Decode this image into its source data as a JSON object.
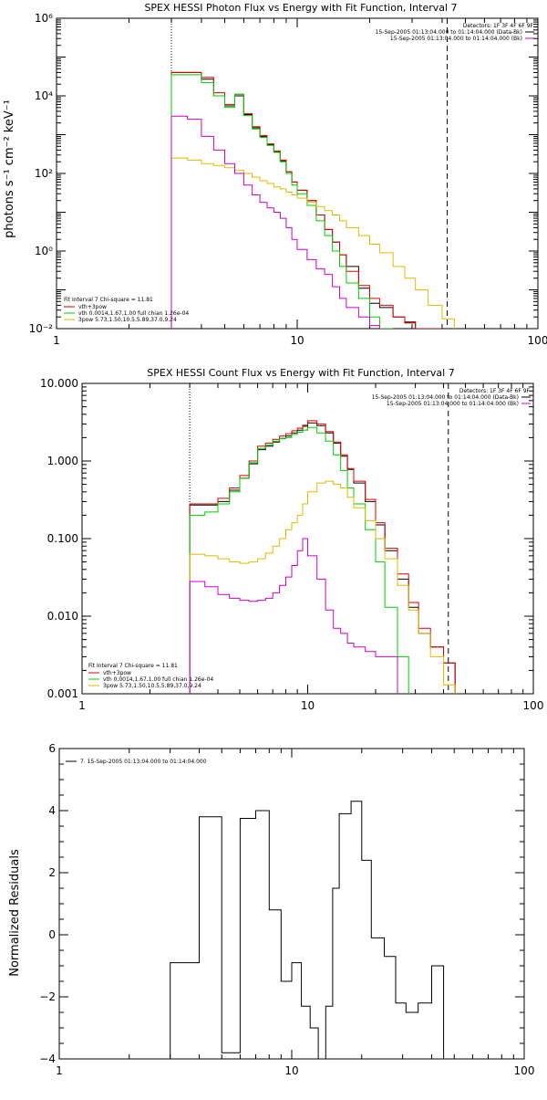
{
  "chart_data": [
    {
      "type": "line",
      "step": true,
      "title": "SPEX HESSI Photon Flux vs Energy with Fit Function, Interval 7",
      "xlabel": "",
      "ylabel": "photons s⁻¹ cm⁻² keV⁻¹",
      "xscale": "log",
      "yscale": "log",
      "xlim": [
        1,
        100
      ],
      "ylim": [
        0.01,
        1000000
      ],
      "xticks": [
        "1",
        "10",
        "100"
      ],
      "yticks": [
        {
          "value": 0.01,
          "label": "10⁻²"
        },
        {
          "value": 1,
          "label": "10⁰"
        },
        {
          "value": 100,
          "label": "10²"
        },
        {
          "value": 10000,
          "label": "10⁴"
        },
        {
          "value": 1000000,
          "label": "10⁶"
        }
      ],
      "vlines": [
        {
          "x": 3,
          "style": "dotted"
        },
        {
          "x": 42,
          "style": "dashed"
        }
      ],
      "header_right": [
        "Detectors: 1F 3F 4F 6F 9F",
        "15-Sep-2005 01:13:04.000 to 01:14:04.000 (Data-Bk)",
        "15-Sep-2005 01:13:04.000 to 01:14:04.000 (Bk)"
      ],
      "legend_lines": [
        {
          "text": "Fit Interval  7   Chi-square = 11.81",
          "color": "#000000"
        },
        {
          "text": "vth+3pow",
          "color": "#dd0000"
        },
        {
          "text": "vth 0.0014,1.67,1.00  full chian 1.26e-04",
          "color": "#00cc00"
        },
        {
          "text": "3pow 5.73,1.50,10.5,5.89,37.0,9.24",
          "color": "#ddbb00"
        }
      ],
      "edges": [
        3,
        3.5,
        4,
        4.5,
        5,
        5.5,
        6,
        6.5,
        7,
        7.5,
        8,
        8.5,
        9,
        9.5,
        10,
        11,
        12,
        13,
        14,
        15,
        16,
        18,
        20,
        22,
        25,
        28,
        31,
        35,
        40,
        45
      ],
      "series": [
        {
          "name": "",
          "color": "#000000",
          "values": [
            40000,
            40000,
            27000,
            10000,
            5500,
            10000,
            3300,
            1500,
            900,
            550,
            360,
            210,
            110,
            60,
            37,
            20,
            8.5,
            3.6,
            1.7,
            0.8,
            0.4,
            0.11,
            0.045,
            0.035,
            0.02,
            0.014,
            0.01,
            0.01,
            null
          ]
        },
        {
          "name": "",
          "color": "#dd0000",
          "values": [
            40000,
            40000,
            30000,
            12000,
            6000,
            11000,
            3500,
            1600,
            950,
            580,
            380,
            220,
            110,
            60,
            37,
            20,
            8.5,
            3.6,
            1.7,
            0.8,
            0.3,
            0.13,
            0.06,
            0.04,
            0.02,
            0.015,
            0.01,
            0.01,
            null
          ]
        },
        {
          "name": "",
          "color": "#00cc00",
          "values": [
            35000,
            35000,
            22000,
            10000,
            5000,
            11000,
            3100,
            1400,
            850,
            530,
            350,
            200,
            100,
            50,
            30,
            15,
            6,
            2.5,
            1,
            0.4,
            0.15,
            0.06,
            0.02,
            0.01,
            null,
            null,
            null,
            null,
            null
          ]
        },
        {
          "name": "",
          "color": "#ddbb00",
          "values": [
            250,
            220,
            180,
            160,
            140,
            120,
            100,
            80,
            65,
            55,
            45,
            40,
            33,
            28,
            23,
            18,
            14,
            11,
            8.5,
            6,
            4,
            2.5,
            1.5,
            0.9,
            0.4,
            0.2,
            0.1,
            0.04,
            0.018
          ]
        },
        {
          "name": "",
          "color": "#cc00cc",
          "values": [
            3000,
            2500,
            900,
            400,
            180,
            100,
            50,
            28,
            18,
            13,
            10,
            7,
            4,
            2,
            1.1,
            0.6,
            0.35,
            0.25,
            0.12,
            0.06,
            0.035,
            0.02,
            0.012,
            null,
            null,
            null,
            null,
            null,
            null
          ]
        }
      ]
    },
    {
      "type": "line",
      "step": true,
      "title": "SPEX HESSI Count Flux vs Energy with Fit Function, Interval 7",
      "xlabel": "",
      "ylabel": "",
      "xscale": "log",
      "yscale": "log",
      "xlim": [
        1,
        100
      ],
      "ylim": [
        0.001,
        10
      ],
      "xticks": [
        "1",
        "10",
        "100"
      ],
      "yticks": [
        {
          "value": 0.001,
          "label": "0.001"
        },
        {
          "value": 0.01,
          "label": "0.010"
        },
        {
          "value": 0.1,
          "label": "0.100"
        },
        {
          "value": 1,
          "label": "1.000"
        },
        {
          "value": 10,
          "label": "10.000"
        }
      ],
      "vlines": [
        {
          "x": 3,
          "style": "dotted"
        },
        {
          "x": 42,
          "style": "dashed"
        }
      ],
      "header_right": [
        "Detectors: 1F 3F 4F 6F 9F",
        "15-Sep-2005 01:13:04.000 to 01:14:04.000 (Data-Bk)",
        "15-Sep-2005 01:13:04.000 to 01:14:04.000 (Bk)"
      ],
      "legend_lines": [
        {
          "text": "Fit Interval  7   Chi-square = 11.81",
          "color": "#000000"
        },
        {
          "text": "vth+3pow",
          "color": "#dd0000"
        },
        {
          "text": "vth 0.0014,1.67,1.00  full chian 1.26e-04",
          "color": "#00cc00"
        },
        {
          "text": "3pow 5.73,1.50,10.5,5.89,37.0,9.24",
          "color": "#ddbb00"
        }
      ],
      "edges": [
        3,
        3.5,
        4,
        4.5,
        5,
        5.5,
        6,
        6.5,
        7,
        7.5,
        8,
        8.5,
        9,
        9.5,
        10,
        11,
        12,
        13,
        14,
        15,
        16,
        18,
        20,
        22,
        25,
        28,
        31,
        35,
        40,
        45
      ],
      "series": [
        {
          "name": "",
          "color": "#000000",
          "values": [
            0.27,
            0.27,
            0.3,
            0.42,
            0.6,
            0.92,
            1.4,
            1.55,
            1.75,
            1.95,
            2.1,
            2.3,
            2.5,
            2.8,
            3.1,
            2.85,
            2.3,
            1.7,
            1.15,
            0.78,
            0.52,
            0.3,
            0.15,
            0.07,
            0.03,
            0.013,
            0.006,
            0.004,
            0.0025
          ]
        },
        {
          "name": "",
          "color": "#dd0000",
          "values": [
            0.28,
            0.28,
            0.33,
            0.45,
            0.65,
            1.0,
            1.55,
            1.7,
            1.9,
            2.1,
            2.25,
            2.45,
            2.65,
            2.9,
            3.3,
            3.0,
            2.4,
            1.75,
            1.2,
            0.8,
            0.55,
            0.32,
            0.16,
            0.075,
            0.035,
            0.015,
            0.007,
            0.004,
            0.0025
          ]
        },
        {
          "name": "",
          "color": "#00cc00",
          "values": [
            0.2,
            0.22,
            0.28,
            0.4,
            0.6,
            0.95,
            1.45,
            1.6,
            1.8,
            1.95,
            2.0,
            2.2,
            2.35,
            2.5,
            2.7,
            2.3,
            1.8,
            1.2,
            0.75,
            0.45,
            0.28,
            0.13,
            0.05,
            0.013,
            0.003,
            null,
            null,
            null,
            null
          ]
        },
        {
          "name": "",
          "color": "#ddbb00",
          "values": [
            0.063,
            0.06,
            0.055,
            0.05,
            0.048,
            0.05,
            0.055,
            0.065,
            0.08,
            0.1,
            0.13,
            0.16,
            0.2,
            0.28,
            0.4,
            0.52,
            0.55,
            0.5,
            0.45,
            0.34,
            0.25,
            0.17,
            0.1,
            0.055,
            0.025,
            0.012,
            0.006,
            0.003,
            0.0013
          ]
        },
        {
          "name": "",
          "color": "#cc00cc",
          "values": [
            0.028,
            0.024,
            0.019,
            0.017,
            0.016,
            0.0155,
            0.016,
            0.017,
            0.02,
            0.025,
            0.032,
            0.045,
            0.07,
            0.1,
            0.06,
            0.03,
            0.012,
            0.007,
            0.006,
            0.0045,
            0.004,
            0.0035,
            0.003,
            0.003,
            null,
            null,
            null,
            null,
            null
          ]
        }
      ]
    },
    {
      "type": "line",
      "step": true,
      "title": "",
      "xlabel": "",
      "ylabel": "Normalized Residuals",
      "xscale": "log",
      "yscale": "linear",
      "xlim": [
        1,
        100
      ],
      "ylim": [
        -4,
        6
      ],
      "xticks": [
        "1",
        "10",
        "100"
      ],
      "yticks": [
        {
          "value": -4,
          "label": "−4"
        },
        {
          "value": -2,
          "label": "−2"
        },
        {
          "value": 0,
          "label": "0"
        },
        {
          "value": 2,
          "label": "2"
        },
        {
          "value": 4,
          "label": "4"
        },
        {
          "value": 6,
          "label": "6"
        }
      ],
      "legend_lines": [
        {
          "text": "7. 15-Sep-2005 01:13:04.000 to 01:14:04.000",
          "color": "#000000"
        }
      ],
      "edges": [
        3,
        4,
        5,
        6,
        7,
        8,
        9,
        10,
        11,
        12,
        13,
        14,
        15,
        16,
        18,
        20,
        22,
        25,
        28,
        31,
        35,
        40,
        45
      ],
      "series": [
        {
          "name": "",
          "color": "#000000",
          "values": [
            -0.9,
            3.8,
            -3.8,
            3.75,
            4.0,
            0.8,
            -1.5,
            -0.9,
            -2.3,
            -3.0,
            -4.1,
            -2.3,
            1.5,
            3.9,
            4.3,
            2.4,
            -0.1,
            -0.7,
            -2.2,
            -2.5,
            -2.2,
            -1.0
          ]
        }
      ]
    }
  ]
}
